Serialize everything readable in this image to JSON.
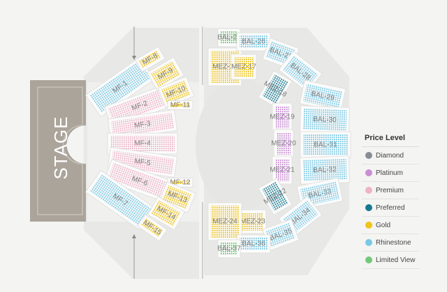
{
  "stage_label": "STAGE",
  "legend": {
    "title": "Price Level",
    "items": [
      {
        "label": "Diamond",
        "color": "#878d94"
      },
      {
        "label": "Platinum",
        "color": "#c98ed4"
      },
      {
        "label": "Premium",
        "color": "#eeb3c8"
      },
      {
        "label": "Preferred",
        "color": "#17798f"
      },
      {
        "label": "Gold",
        "color": "#f0c417"
      },
      {
        "label": "Rhinestone",
        "color": "#79c9e4"
      },
      {
        "label": "Limited View",
        "color": "#72c879"
      }
    ]
  },
  "sections": [
    {
      "label": "MF-1",
      "tier": "Rhinestone"
    },
    {
      "label": "MF-2",
      "tier": "Premium"
    },
    {
      "label": "MF-3",
      "tier": "Premium"
    },
    {
      "label": "MF-4",
      "tier": "Premium"
    },
    {
      "label": "MF-5",
      "tier": "Premium"
    },
    {
      "label": "MF-6",
      "tier": "Premium"
    },
    {
      "label": "MF-7",
      "tier": "Rhinestone"
    },
    {
      "label": "MF-8",
      "tier": "Gold"
    },
    {
      "label": "MF-9",
      "tier": "Gold"
    },
    {
      "label": "MF-10",
      "tier": "Gold"
    },
    {
      "label": "MF-11",
      "tier": "Gold"
    },
    {
      "label": "MF-12",
      "tier": "Gold"
    },
    {
      "label": "MF-13",
      "tier": "Gold"
    },
    {
      "label": "MF-14",
      "tier": "Gold"
    },
    {
      "label": "MF-15",
      "tier": "Gold"
    },
    {
      "label": "MEZ-16",
      "tier": "Gold"
    },
    {
      "label": "MEZ-17",
      "tier": "Gold"
    },
    {
      "label": "MEZ-18",
      "tier": "Preferred"
    },
    {
      "label": "MEZ-19",
      "tier": "Platinum"
    },
    {
      "label": "MEZ-20",
      "tier": "Platinum"
    },
    {
      "label": "MEZ-21",
      "tier": "Platinum"
    },
    {
      "label": "MEZ-22",
      "tier": "Preferred"
    },
    {
      "label": "MEZ-23",
      "tier": "Gold"
    },
    {
      "label": "MEZ-24",
      "tier": "Gold"
    },
    {
      "label": "BAL-25",
      "tier": "Limited View"
    },
    {
      "label": "BAL-26",
      "tier": "Rhinestone"
    },
    {
      "label": "BAL-27",
      "tier": "Rhinestone"
    },
    {
      "label": "BAL-28",
      "tier": "Rhinestone"
    },
    {
      "label": "BAL-29",
      "tier": "Rhinestone"
    },
    {
      "label": "BAL-30",
      "tier": "Rhinestone"
    },
    {
      "label": "BAL-31",
      "tier": "Rhinestone"
    },
    {
      "label": "BAL-32",
      "tier": "Rhinestone"
    },
    {
      "label": "BAL-33",
      "tier": "Rhinestone"
    },
    {
      "label": "BAL-34",
      "tier": "Rhinestone"
    },
    {
      "label": "BAL-35",
      "tier": "Rhinestone"
    },
    {
      "label": "BAL-36",
      "tier": "Rhinestone"
    },
    {
      "label": "BAL-37",
      "tier": "Limited View"
    }
  ]
}
